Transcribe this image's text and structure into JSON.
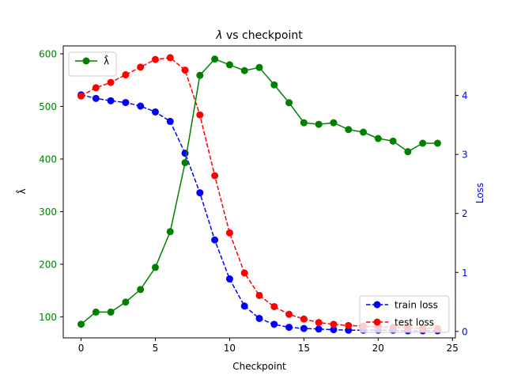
{
  "chart_data": {
    "type": "line",
    "title": {
      "symbol": "λ",
      "rest": " vs checkpoint"
    },
    "xlabel": "Checkpoint",
    "ylabel_left": "λ̂",
    "ylabel_right": "Loss",
    "x": [
      0,
      1,
      2,
      3,
      4,
      5,
      6,
      7,
      8,
      9,
      10,
      11,
      12,
      13,
      14,
      15,
      16,
      17,
      18,
      19,
      20,
      21,
      22,
      23,
      24
    ],
    "xlim": [
      -1.2,
      25.2
    ],
    "xticks": [
      0,
      5,
      10,
      15,
      20,
      25
    ],
    "left_axis": {
      "ylim": [
        60,
        615
      ],
      "ticks": [
        100,
        200,
        300,
        400,
        500,
        600
      ],
      "color": "#008000"
    },
    "right_axis": {
      "ylim": [
        -0.11,
        4.84
      ],
      "ticks": [
        0,
        1,
        2,
        3,
        4
      ],
      "color": "#0000ff"
    },
    "series": [
      {
        "name": "λ̂",
        "axis": "left",
        "color": "#008000",
        "style": "solid",
        "values": [
          86,
          109,
          109,
          128,
          152,
          194,
          262,
          393,
          559,
          590,
          579,
          568,
          574,
          541,
          507,
          469,
          466,
          469,
          456,
          451,
          439,
          434,
          414,
          430,
          430
        ]
      },
      {
        "name": "train loss",
        "axis": "right",
        "color": "#0000ff",
        "style": "dashed",
        "values": [
          4.01,
          3.95,
          3.91,
          3.88,
          3.82,
          3.72,
          3.56,
          3.02,
          2.35,
          1.55,
          0.89,
          0.43,
          0.22,
          0.12,
          0.07,
          0.05,
          0.04,
          0.03,
          0.02,
          0.02,
          0.02,
          0.02,
          0.01,
          0.01,
          0.01
        ]
      },
      {
        "name": "test loss",
        "axis": "right",
        "color": "#ff0000",
        "style": "dashed",
        "values": [
          3.99,
          4.13,
          4.22,
          4.35,
          4.48,
          4.61,
          4.64,
          4.43,
          3.67,
          2.64,
          1.67,
          0.99,
          0.61,
          0.42,
          0.29,
          0.21,
          0.15,
          0.12,
          0.1,
          0.09,
          0.08,
          0.07,
          0.06,
          0.05,
          0.05
        ]
      }
    ],
    "legends": [
      {
        "placement": "upper-left",
        "entries": [
          "λ̂"
        ]
      },
      {
        "placement": "lower-right",
        "entries": [
          "train loss",
          "test loss"
        ]
      }
    ],
    "grid": false
  }
}
